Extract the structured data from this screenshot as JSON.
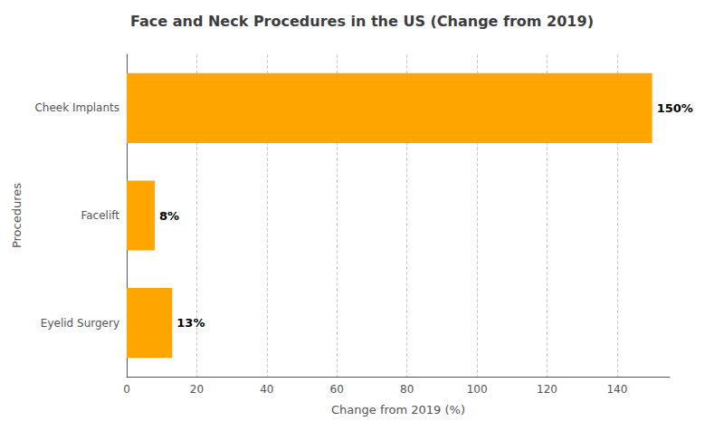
{
  "chart_data": {
    "type": "bar",
    "orientation": "horizontal",
    "title": "Face and Neck Procedures in the US (Change from 2019)",
    "xlabel": "Change from 2019 (%)",
    "ylabel": "Procedures",
    "categories": [
      "Eyelid Surgery",
      "Facelift",
      "Cheek Implants"
    ],
    "values": [
      13,
      8,
      150
    ],
    "value_labels": [
      "13%",
      "8%",
      "150%"
    ],
    "data_labels": true,
    "colors": [
      "#FFA500",
      "#FFA500",
      "#FFA500"
    ],
    "xlim": [
      0,
      155
    ],
    "xticks": [
      0,
      20,
      40,
      60,
      80,
      100,
      120,
      140
    ],
    "grid": true
  }
}
